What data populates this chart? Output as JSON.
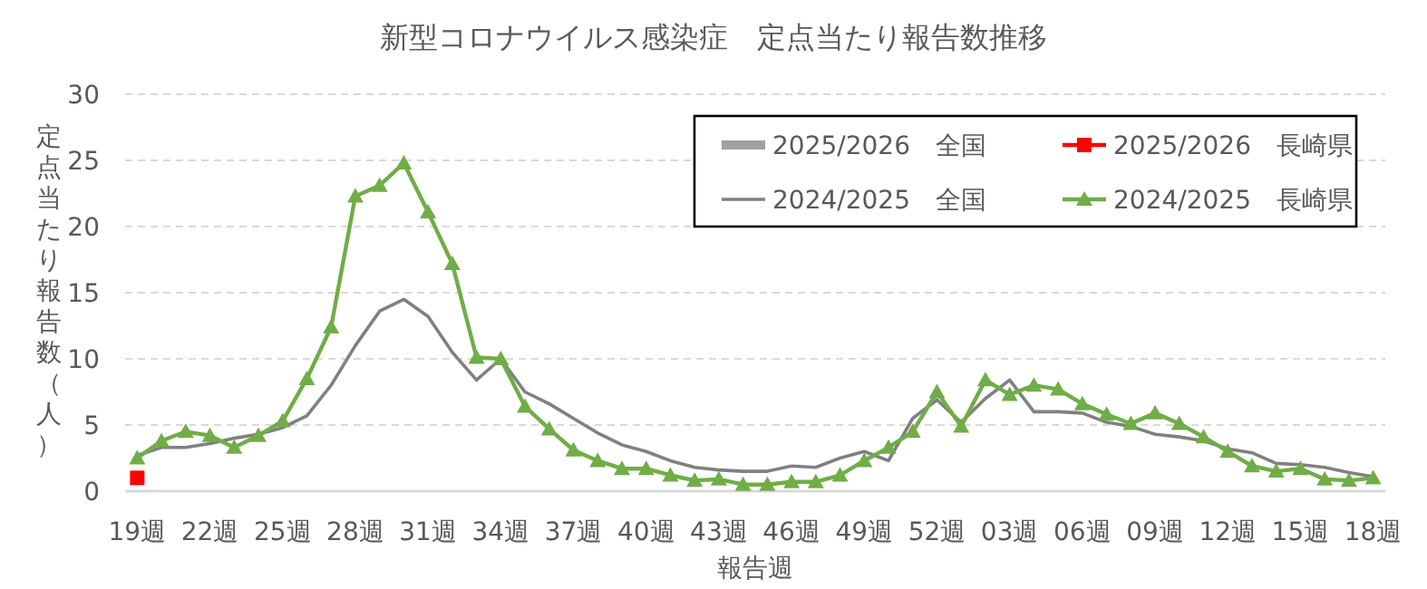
{
  "chart_data": {
    "type": "line",
    "title": "新型コロナウイルス感染症　定点当たり報告数推移",
    "xlabel": "報告週",
    "ylabel": "定点当たり報告数（人）",
    "categories": [
      "19週",
      null,
      null,
      "22週",
      null,
      null,
      "25週",
      null,
      null,
      "28週",
      null,
      null,
      "31週",
      null,
      null,
      "34週",
      null,
      null,
      "37週",
      null,
      null,
      "40週",
      null,
      null,
      "43週",
      null,
      null,
      "46週",
      null,
      null,
      "49週",
      null,
      null,
      "52週",
      null,
      null,
      "03週",
      null,
      null,
      "06週",
      null,
      null,
      "09週",
      null,
      null,
      "12週",
      null,
      null,
      "15週",
      null,
      null,
      "18週"
    ],
    "ylim": [
      0,
      30
    ],
    "yticks": [
      0,
      5,
      10,
      15,
      20,
      25,
      30
    ],
    "grid": "y",
    "legend": "top right",
    "series": [
      {
        "name": "2025/2026　全国",
        "color": "#a0a0a0",
        "marker": "none",
        "values": [
          null,
          null,
          null,
          null,
          null,
          null,
          null,
          null,
          null,
          null,
          null,
          null,
          null,
          null,
          null,
          null,
          null,
          null,
          null,
          null,
          null,
          null,
          null,
          null,
          null,
          null,
          null,
          null,
          null,
          null,
          null,
          null,
          null,
          null,
          null,
          null,
          null,
          null,
          null,
          null,
          null,
          null,
          null,
          null,
          null,
          null,
          null,
          null,
          null,
          null,
          null,
          null
        ]
      },
      {
        "name": "2025/2026　長崎県",
        "color": "#ff0000",
        "marker": "square",
        "values": [
          1.0,
          null,
          null,
          null,
          null,
          null,
          null,
          null,
          null,
          null,
          null,
          null,
          null,
          null,
          null,
          null,
          null,
          null,
          null,
          null,
          null,
          null,
          null,
          null,
          null,
          null,
          null,
          null,
          null,
          null,
          null,
          null,
          null,
          null,
          null,
          null,
          null,
          null,
          null,
          null,
          null,
          null,
          null,
          null,
          null,
          null,
          null,
          null,
          null,
          null,
          null,
          null
        ]
      },
      {
        "name": "2024/2025　全国",
        "color": "#808080",
        "marker": "none",
        "values": [
          2.7,
          3.3,
          3.3,
          3.6,
          4.0,
          4.3,
          4.8,
          5.7,
          8.0,
          11.0,
          13.6,
          14.5,
          13.2,
          10.5,
          8.4,
          10.0,
          7.5,
          6.6,
          5.5,
          4.4,
          3.5,
          3.0,
          2.3,
          1.8,
          1.6,
          1.5,
          1.5,
          1.9,
          1.8,
          2.5,
          3.0,
          2.3,
          5.5,
          6.9,
          5.2,
          7.0,
          8.4,
          6.0,
          6.0,
          5.9,
          5.2,
          4.9,
          4.3,
          4.1,
          3.8,
          3.2,
          2.9,
          2.1,
          2.0,
          1.8,
          1.4,
          1.1
        ]
      },
      {
        "name": "2024/2025　長崎県",
        "color": "#70ad47",
        "marker": "triangle",
        "values": [
          2.5,
          3.8,
          4.5,
          4.2,
          3.3,
          4.2,
          5.3,
          8.5,
          12.4,
          22.3,
          23.1,
          24.8,
          21.1,
          17.2,
          10.1,
          10.0,
          6.4,
          4.7,
          3.1,
          2.3,
          1.7,
          1.7,
          1.2,
          0.8,
          0.9,
          0.5,
          0.5,
          0.7,
          0.7,
          1.2,
          2.3,
          3.3,
          4.5,
          7.5,
          4.9,
          8.4,
          7.3,
          8.0,
          7.7,
          6.6,
          5.8,
          5.1,
          5.9,
          5.1,
          4.1,
          3.0,
          1.9,
          1.5,
          1.7,
          0.9,
          0.8,
          1.0
        ]
      }
    ]
  }
}
